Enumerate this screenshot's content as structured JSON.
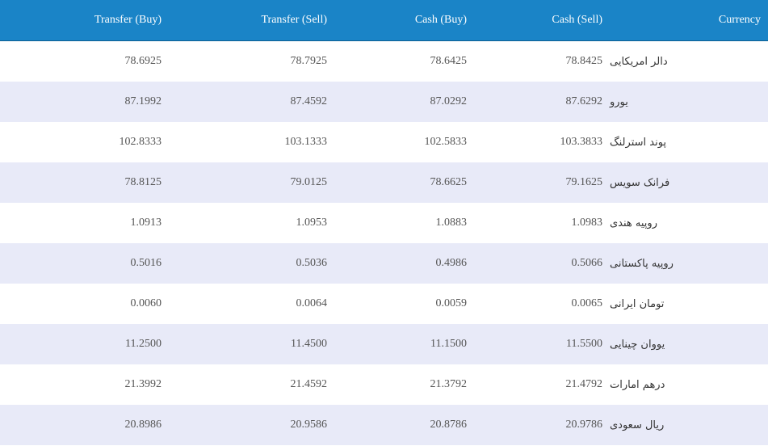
{
  "header": {
    "transfer_buy": "Transfer (Buy)",
    "transfer_sell": "Transfer (Sell)",
    "cash_buy": "Cash (Buy)",
    "cash_sell": "Cash (Sell)",
    "currency": "Currency"
  },
  "rows": [
    {
      "transfer_buy": "78.6925",
      "transfer_sell": "78.7925",
      "cash_buy": "78.6425",
      "cash_sell": "78.8425",
      "currency": "دالر امریکایی"
    },
    {
      "transfer_buy": "87.1992",
      "transfer_sell": "87.4592",
      "cash_buy": "87.0292",
      "cash_sell": "87.6292",
      "currency": "یورو"
    },
    {
      "transfer_buy": "102.8333",
      "transfer_sell": "103.1333",
      "cash_buy": "102.5833",
      "cash_sell": "103.3833",
      "currency": "پوند استرلنگ"
    },
    {
      "transfer_buy": "78.8125",
      "transfer_sell": "79.0125",
      "cash_buy": "78.6625",
      "cash_sell": "79.1625",
      "currency": "فرانک سویس"
    },
    {
      "transfer_buy": "1.0913",
      "transfer_sell": "1.0953",
      "cash_buy": "1.0883",
      "cash_sell": "1.0983",
      "currency": "روپیه هندی"
    },
    {
      "transfer_buy": "0.5016",
      "transfer_sell": "0.5036",
      "cash_buy": "0.4986",
      "cash_sell": "0.5066",
      "currency": "روپیه پاکستانی"
    },
    {
      "transfer_buy": "0.0060",
      "transfer_sell": "0.0064",
      "cash_buy": "0.0059",
      "cash_sell": "0.0065",
      "currency": "تومان ایرانی"
    },
    {
      "transfer_buy": "11.2500",
      "transfer_sell": "11.4500",
      "cash_buy": "11.1500",
      "cash_sell": "11.5500",
      "currency": "یووان چینایی"
    },
    {
      "transfer_buy": "21.3992",
      "transfer_sell": "21.4592",
      "cash_buy": "21.3792",
      "cash_sell": "21.4792",
      "currency": "درهم امارات"
    },
    {
      "transfer_buy": "20.8986",
      "transfer_sell": "20.9586",
      "cash_buy": "20.8786",
      "cash_sell": "20.9786",
      "currency": "ریال سعودی"
    }
  ]
}
